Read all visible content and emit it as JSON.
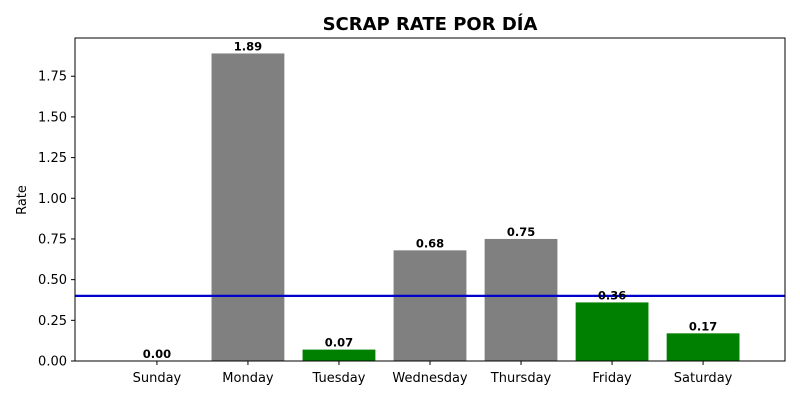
{
  "chart_data": {
    "type": "bar",
    "title": "SCRAP RATE POR DÍA",
    "xlabel": "",
    "ylabel": "Rate",
    "categories": [
      "Sunday",
      "Monday",
      "Tuesday",
      "Wednesday",
      "Thursday",
      "Friday",
      "Saturday"
    ],
    "values": [
      0.0,
      1.89,
      0.07,
      0.68,
      0.75,
      0.36,
      0.17
    ],
    "value_labels": [
      "0.00",
      "1.89",
      "0.07",
      "0.68",
      "0.75",
      "0.36",
      "0.17"
    ],
    "bar_colors": [
      "#808080",
      "#808080",
      "#008000",
      "#808080",
      "#808080",
      "#008000",
      "#008000"
    ],
    "ylim": [
      0,
      1.985
    ],
    "yticks": [
      0.0,
      0.25,
      0.5,
      0.75,
      1.0,
      1.25,
      1.5,
      1.75
    ],
    "ytick_labels": [
      "0.00",
      "0.25",
      "0.50",
      "0.75",
      "1.00",
      "1.25",
      "1.50",
      "1.75"
    ],
    "threshold": {
      "value": 0.4,
      "color": "#0000cc"
    },
    "grid": false,
    "legend": "none"
  }
}
